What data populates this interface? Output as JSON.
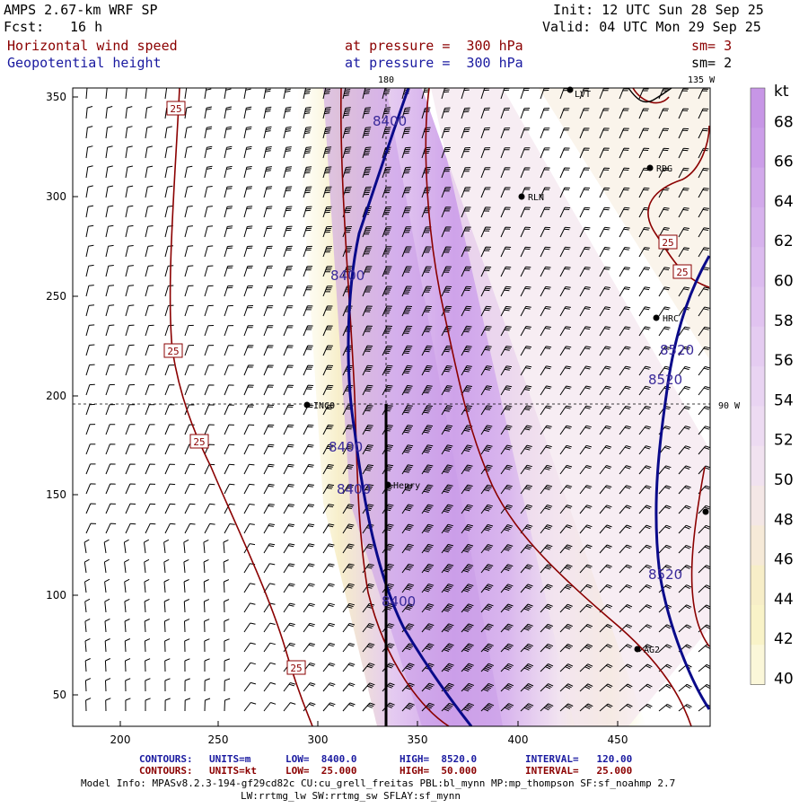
{
  "header": {
    "model": "AMPS 2.67-km WRF SP",
    "fcst_label": "Fcst:",
    "fcst_value": "16 h",
    "init": "Init: 12 UTC Sun 28 Sep 25",
    "valid": "Valid: 04 UTC Mon 29 Sep 25",
    "field1": "Horizontal wind speed",
    "field2": "Geopotential height",
    "level1": "at pressure =  300 hPa",
    "level2": "at pressure =  300 hPa",
    "sm1": "sm= 3",
    "sm2": "sm= 2"
  },
  "map": {
    "lon_180": "180",
    "lon_135w": "135 W",
    "lon_90w": "90 W",
    "x_ticks": [
      "200",
      "250",
      "300",
      "350",
      "400",
      "450"
    ],
    "y_ticks": [
      "50",
      "100",
      "150",
      "200",
      "250",
      "300",
      "350"
    ],
    "stations": [
      {
        "id": "LVT",
        "label": "LVT"
      },
      {
        "id": "RDG",
        "label": "RDG"
      },
      {
        "id": "RLN",
        "label": "RLN"
      },
      {
        "id": "HRC",
        "label": "HRC"
      },
      {
        "id": "INCO",
        "label": "INCO"
      },
      {
        "id": "Henry",
        "label": "Henry"
      },
      {
        "id": "AG2",
        "label": "AG2"
      }
    ],
    "height_labels": [
      "8400",
      "8400",
      "8400",
      "8400",
      "8400",
      "8520",
      "8520",
      "8520"
    ],
    "speed_labels": [
      "25",
      "25",
      "25",
      "25",
      "25",
      "25"
    ]
  },
  "colorbar": {
    "unit": "kt",
    "levels": [
      "68",
      "66",
      "64",
      "62",
      "60",
      "58",
      "56",
      "54",
      "52",
      "50",
      "48",
      "46",
      "44",
      "42",
      "40"
    ],
    "colors": [
      "#c796e6",
      "#cc9ee9",
      "#d2a9eb",
      "#d7b2ed",
      "#dcbbef",
      "#e1c3f0",
      "#e5ccf1",
      "#e9d4f2",
      "#eddbf2",
      "#f1e2f0",
      "#f4e7e6",
      "#f6ead8",
      "#f7eec8",
      "#f9f3c8",
      "#fbf7d9"
    ]
  },
  "footer": {
    "c1_label": "CONTOURS:",
    "c1_units": "UNITS=m",
    "c1_low": "LOW=  8400.0",
    "c1_high": "HIGH=  8520.0",
    "c1_int": "INTERVAL=   120.00",
    "c2_label": "CONTOURS:",
    "c2_units": "UNITS=kt",
    "c2_low": "LOW=  25.000",
    "c2_high": "HIGH=  50.000",
    "c2_int": "INTERVAL=   25.000",
    "model_info": "Model Info: MPASv8.2.3-194-gf29cd82c CU:cu_grell_freitas PBL:bl_mynn MP:mp_thompson SF:sf_noahmp 2.7",
    "model_info2": "LW:rrtmg_lw SW:rrtmg_sw SFLAY:sf_mynn"
  }
}
